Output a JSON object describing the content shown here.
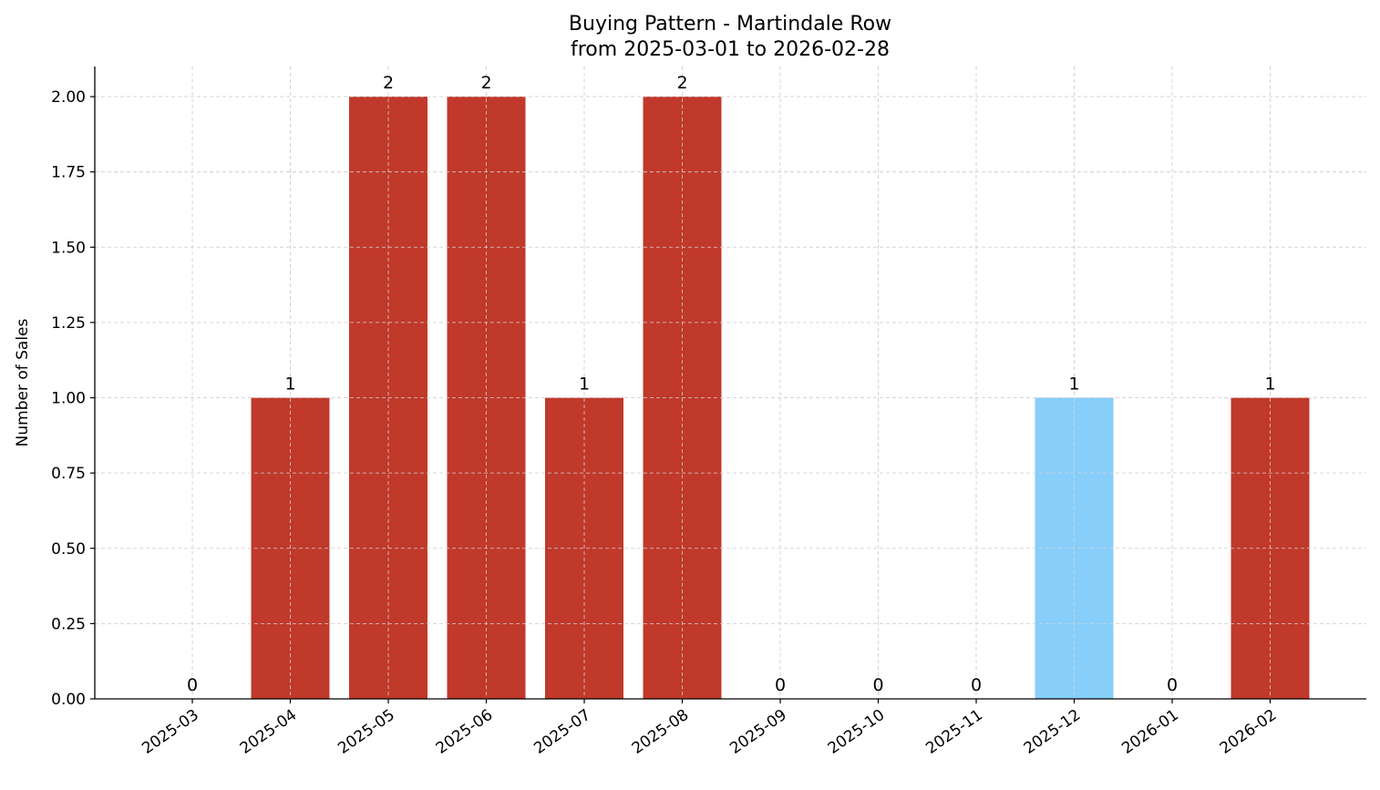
{
  "chart_data": {
    "type": "bar",
    "title": "Buying Pattern - Martindale Row",
    "subtitle": "from 2025-03-01 to 2026-02-28",
    "xlabel": "",
    "ylabel": "Number of Sales",
    "categories": [
      "2025-03",
      "2025-04",
      "2025-05",
      "2025-06",
      "2025-07",
      "2025-08",
      "2025-09",
      "2025-10",
      "2025-11",
      "2025-12",
      "2026-01",
      "2026-02"
    ],
    "values": [
      0,
      1,
      2,
      2,
      1,
      2,
      0,
      0,
      0,
      1,
      0,
      1
    ],
    "data_labels": [
      "0",
      "1",
      "2",
      "2",
      "1",
      "2",
      "0",
      "0",
      "0",
      "1",
      "0",
      "1"
    ],
    "bar_colors": [
      "#c0392b",
      "#c0392b",
      "#c0392b",
      "#c0392b",
      "#c0392b",
      "#c0392b",
      "#c0392b",
      "#c0392b",
      "#c0392b",
      "#87cefa",
      "#c0392b",
      "#c0392b"
    ],
    "ylim": [
      0,
      2.1
    ],
    "yticks": [
      0,
      0.25,
      0.5,
      0.75,
      1.0,
      1.25,
      1.5,
      1.75,
      2.0
    ],
    "ytick_labels": [
      "0.00",
      "0.25",
      "0.50",
      "0.75",
      "1.00",
      "1.25",
      "1.50",
      "1.75",
      "2.00"
    ],
    "grid": true,
    "legend": "none"
  }
}
